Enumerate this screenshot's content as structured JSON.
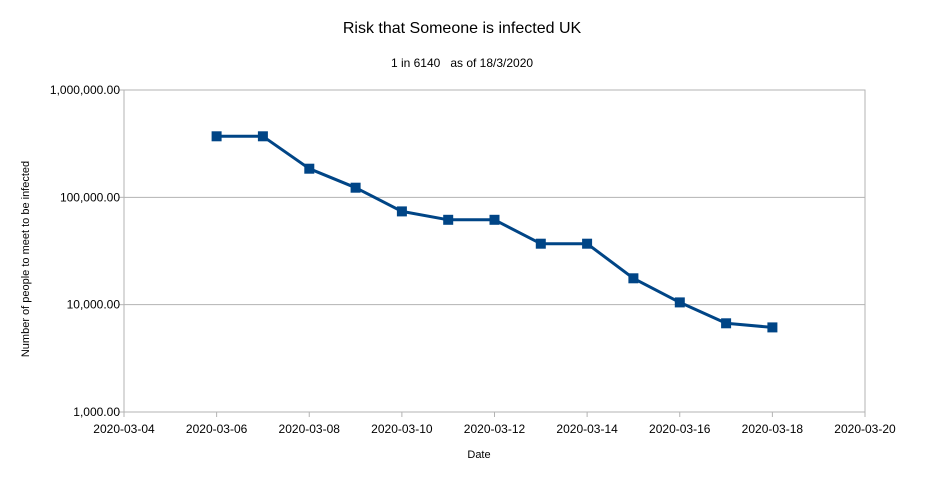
{
  "chart_data": {
    "type": "line",
    "title": "Risk that Someone is infected UK",
    "subtitle": "1 in 6140   as of 18/3/2020",
    "xlabel": "Date",
    "ylabel": "Number of people to meet to be infected",
    "y_scale": "log",
    "ylim": [
      1000,
      1000000
    ],
    "y_ticks": [
      1000,
      10000,
      100000,
      1000000
    ],
    "y_tick_labels": [
      "1,000.00",
      "10,000.00",
      "100,000.00",
      "1,000,000.00"
    ],
    "xlim": [
      "2020-03-04",
      "2020-03-20"
    ],
    "x_ticks": [
      "2020-03-04",
      "2020-03-06",
      "2020-03-08",
      "2020-03-10",
      "2020-03-12",
      "2020-03-14",
      "2020-03-16",
      "2020-03-18",
      "2020-03-20"
    ],
    "grid": "horizontal",
    "legend": "none",
    "series": [
      {
        "color": "#004586",
        "marker": "square",
        "x": [
          "2020-03-06",
          "2020-03-07",
          "2020-03-08",
          "2020-03-09",
          "2020-03-10",
          "2020-03-11",
          "2020-03-12",
          "2020-03-13",
          "2020-03-14",
          "2020-03-15",
          "2020-03-16",
          "2020-03-17",
          "2020-03-18"
        ],
        "values": [
          370000,
          370000,
          185000,
          123000,
          74000,
          61700,
          61700,
          37000,
          37000,
          17600,
          10500,
          6700,
          6140
        ]
      }
    ]
  }
}
